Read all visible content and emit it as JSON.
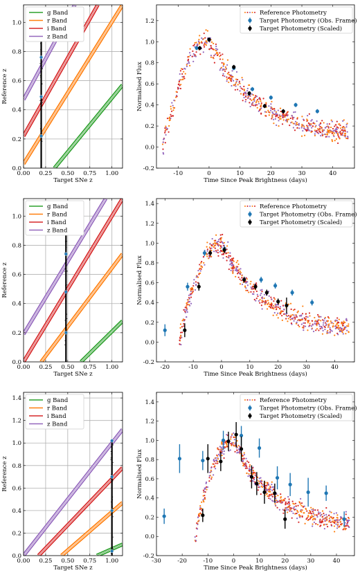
{
  "colors": {
    "g": "#2ca02c",
    "r": "#ff7f0e",
    "i": "#d62728",
    "z": "#9467bd",
    "obs": "#1f77b4",
    "scaled": "#000000",
    "refDots": [
      "#ff7f0e",
      "#d62728",
      "#9467bd"
    ]
  },
  "chart_data": [
    {
      "type": "line",
      "panel": "left",
      "row": 1,
      "xlabel": "Target SNe z",
      "ylabel": "Reference z",
      "xlim": [
        0,
        1.12
      ],
      "ylim": [
        0,
        1.12
      ],
      "xticks": [
        0.0,
        0.25,
        0.5,
        0.75,
        1.0
      ],
      "xticklabels": [
        "0.00",
        "0.25",
        "0.50",
        "0.75",
        "1.00"
      ],
      "yticks": [
        0.0,
        0.2,
        0.4,
        0.6,
        0.8,
        1.0
      ],
      "yticklabels": [
        "0.0",
        "0.2",
        "0.4",
        "0.6",
        "0.8",
        "1.0"
      ],
      "grid": true,
      "legend": "top-left",
      "bands": [
        {
          "name": "g Band",
          "key": "g",
          "x": [
            0.35,
            1.12
          ],
          "y": [
            0.0,
            0.57
          ]
        },
        {
          "name": "r Band",
          "key": "r",
          "x": [
            0.0,
            1.12
          ],
          "y": [
            0.03,
            1.12
          ]
        },
        {
          "name": "i Band",
          "key": "i",
          "x": [
            0.0,
            0.84
          ],
          "y": [
            0.22,
            1.12
          ]
        },
        {
          "name": "z Band",
          "key": "z",
          "x": [
            0.0,
            0.58
          ],
          "y": [
            0.47,
            1.12
          ]
        }
      ],
      "target_z": 0.2,
      "vline": [
        0.0,
        1.08
      ],
      "markers": [
        0.22,
        0.49,
        0.76
      ]
    },
    {
      "type": "scatter",
      "panel": "right",
      "row": 1,
      "xlabel": "Time Since Peak Brightness (days)",
      "ylabel": "Normalised Flux",
      "xlim": [
        -17,
        47
      ],
      "ylim": [
        -0.2,
        1.35
      ],
      "xticks": [
        -10,
        0,
        10,
        20,
        30,
        40
      ],
      "yticks": [
        -0.2,
        0.0,
        0.2,
        0.4,
        0.6,
        0.8,
        1.0,
        1.2
      ],
      "yticklabels": [
        "-0.2",
        "0.0",
        "0.2",
        "0.4",
        "0.6",
        "0.8",
        "1.0",
        "1.2"
      ],
      "legend": "top-right",
      "legend_entries": [
        "Reference Photometry",
        "Target Photometry (Obs. Frame)",
        "Target Photometry (Scaled)"
      ],
      "reference_range": [
        -15,
        45
      ],
      "obs_frame": {
        "x": [
          -4,
          0,
          8,
          14,
          20,
          28,
          35
        ],
        "y": [
          0.94,
          1.02,
          0.75,
          0.55,
          0.47,
          0.4,
          0.34
        ],
        "err": [
          0.02,
          0.02,
          0.02,
          0.02,
          0.02,
          0.02,
          0.02
        ]
      },
      "scaled": {
        "x": [
          -3,
          0,
          8,
          13,
          18,
          24
        ],
        "y": [
          0.94,
          1.02,
          0.76,
          0.51,
          0.39,
          0.34
        ],
        "err": [
          0.02,
          0.02,
          0.02,
          0.02,
          0.02,
          0.02
        ]
      }
    },
    {
      "type": "line",
      "panel": "left",
      "row": 2,
      "xlabel": "Target SNe z",
      "ylabel": "Reference z",
      "xlim": [
        0,
        1.12
      ],
      "ylim": [
        0,
        1.12
      ],
      "xticks": [
        0.0,
        0.25,
        0.5,
        0.75,
        1.0
      ],
      "xticklabels": [
        "0.00",
        "0.25",
        "0.50",
        "0.75",
        "1.00"
      ],
      "yticks": [
        0.0,
        0.2,
        0.4,
        0.6,
        0.8,
        1.0
      ],
      "yticklabels": [
        "0.0",
        "0.2",
        "0.4",
        "0.6",
        "0.8",
        "1.0"
      ],
      "grid": true,
      "legend": "top-left",
      "bands": [
        {
          "name": "g Band",
          "key": "g",
          "x": [
            0.65,
            1.12
          ],
          "y": [
            0.0,
            0.28
          ]
        },
        {
          "name": "r Band",
          "key": "r",
          "x": [
            0.2,
            1.12
          ],
          "y": [
            0.0,
            0.74
          ]
        },
        {
          "name": "i Band",
          "key": "i",
          "x": [
            0.0,
            1.12
          ],
          "y": [
            0.0,
            1.12
          ]
        },
        {
          "name": "z Band",
          "key": "z",
          "x": [
            0.0,
            0.93
          ],
          "y": [
            0.19,
            1.12
          ]
        }
      ],
      "target_z": 0.48,
      "vline": [
        0.0,
        1.1
      ],
      "markers": [
        0.2,
        0.48,
        0.74
      ]
    },
    {
      "type": "scatter",
      "panel": "right",
      "row": 2,
      "xlabel": "Time Since Peak Brightness (days)",
      "ylabel": "Normalised Flux",
      "xlim": [
        -23,
        47
      ],
      "ylim": [
        -0.2,
        1.45
      ],
      "xticks": [
        -20,
        -10,
        0,
        10,
        20,
        30,
        40
      ],
      "yticks": [
        -0.2,
        0.0,
        0.2,
        0.4,
        0.6,
        0.8,
        1.0,
        1.2,
        1.4
      ],
      "yticklabels": [
        "-0.2",
        "0.0",
        "0.2",
        "0.4",
        "0.6",
        "0.8",
        "1.0",
        "1.2",
        "1.4"
      ],
      "legend": "top-right",
      "legend_entries": [
        "Reference Photometry",
        "Target Photometry (Obs. Frame)",
        "Target Photometry (Scaled)"
      ],
      "reference_range": [
        -15,
        45
      ],
      "obs_frame": {
        "x": [
          -20,
          -12,
          -6,
          1,
          14,
          19,
          25,
          32
        ],
        "y": [
          0.12,
          0.56,
          0.9,
          0.94,
          0.63,
          0.57,
          0.5,
          0.4
        ],
        "err": [
          0.06,
          0.04,
          0.03,
          0.03,
          0.03,
          0.03,
          0.03,
          0.03
        ]
      },
      "scaled": {
        "x": [
          -13,
          -8,
          -4,
          1,
          8,
          12,
          16,
          20,
          23
        ],
        "y": [
          0.12,
          0.56,
          0.9,
          0.93,
          0.63,
          0.56,
          0.5,
          0.41,
          0.37
        ],
        "err": [
          0.07,
          0.04,
          0.03,
          0.03,
          0.03,
          0.03,
          0.03,
          0.03,
          0.08
        ]
      }
    },
    {
      "type": "line",
      "panel": "left",
      "row": 3,
      "xlabel": "Target SNe z",
      "ylabel": "Reference z",
      "xlim": [
        0,
        1.12
      ],
      "ylim": [
        0,
        1.45
      ],
      "xticks": [
        0.0,
        0.25,
        0.5,
        0.75,
        1.0
      ],
      "xticklabels": [
        "0.00",
        "0.25",
        "0.50",
        "0.75",
        "1.00"
      ],
      "yticks": [
        0.0,
        0.2,
        0.4,
        0.6,
        0.8,
        1.0,
        1.2,
        1.4
      ],
      "yticklabels": [
        "0.0",
        "0.2",
        "0.4",
        "0.6",
        "0.8",
        "1.0",
        "1.2",
        "1.4"
      ],
      "grid": true,
      "legend": "top-left",
      "bands": [
        {
          "name": "g Band",
          "key": "g",
          "x": [
            0.83,
            1.12
          ],
          "y": [
            0.0,
            0.1
          ]
        },
        {
          "name": "r Band",
          "key": "r",
          "x": [
            0.43,
            1.12
          ],
          "y": [
            0.0,
            0.47
          ]
        },
        {
          "name": "i Band",
          "key": "i",
          "x": [
            0.17,
            1.12
          ],
          "y": [
            0.0,
            0.78
          ]
        },
        {
          "name": "z Band",
          "key": "z",
          "x": [
            0.0,
            1.12
          ],
          "y": [
            0.0,
            1.12
          ]
        }
      ],
      "target_z": 1.0,
      "vline": [
        0.0,
        1.03
      ],
      "markers": [
        0.04,
        0.4,
        0.7,
        1.02
      ]
    },
    {
      "type": "scatter",
      "panel": "right",
      "row": 3,
      "xlabel": "Time Since Peak Brightness (days)",
      "ylabel": "Normalised Flux",
      "xlim": [
        -30,
        47
      ],
      "ylim": [
        -0.2,
        1.5
      ],
      "xticks": [
        -30,
        -20,
        -10,
        0,
        10,
        20,
        30,
        40
      ],
      "yticks": [
        -0.2,
        0.0,
        0.2,
        0.4,
        0.6,
        0.8,
        1.0,
        1.2,
        1.4
      ],
      "yticklabels": [
        "-0.2",
        "0.0",
        "0.2",
        "0.4",
        "0.6",
        "0.8",
        "1.0",
        "1.2",
        "1.4"
      ],
      "legend": "top-right",
      "legend_entries": [
        "Reference Photometry",
        "Target Photometry (Obs. Frame)",
        "Target Photometry (Scaled)"
      ],
      "reference_range": [
        -15,
        45
      ],
      "obs_frame": {
        "x": [
          -27,
          -21,
          -12,
          -4,
          3,
          10,
          17,
          22,
          29,
          36,
          43
        ],
        "y": [
          0.21,
          0.81,
          0.79,
          1.0,
          1.05,
          0.92,
          0.61,
          0.54,
          0.46,
          0.45,
          0.18
        ],
        "err": [
          0.08,
          0.15,
          0.1,
          0.1,
          0.1,
          0.1,
          0.12,
          0.12,
          0.15,
          0.08,
          0.08
        ]
      },
      "scaled": {
        "x": [
          -12,
          -10,
          -5,
          -2,
          1,
          3,
          7,
          9,
          12,
          16,
          20
        ],
        "y": [
          0.22,
          0.81,
          0.78,
          0.99,
          1.06,
          0.91,
          0.62,
          0.55,
          0.46,
          0.45,
          0.18
        ],
        "err": [
          0.07,
          0.15,
          0.1,
          0.1,
          0.13,
          0.13,
          0.12,
          0.12,
          0.12,
          0.1,
          0.1
        ]
      }
    }
  ]
}
